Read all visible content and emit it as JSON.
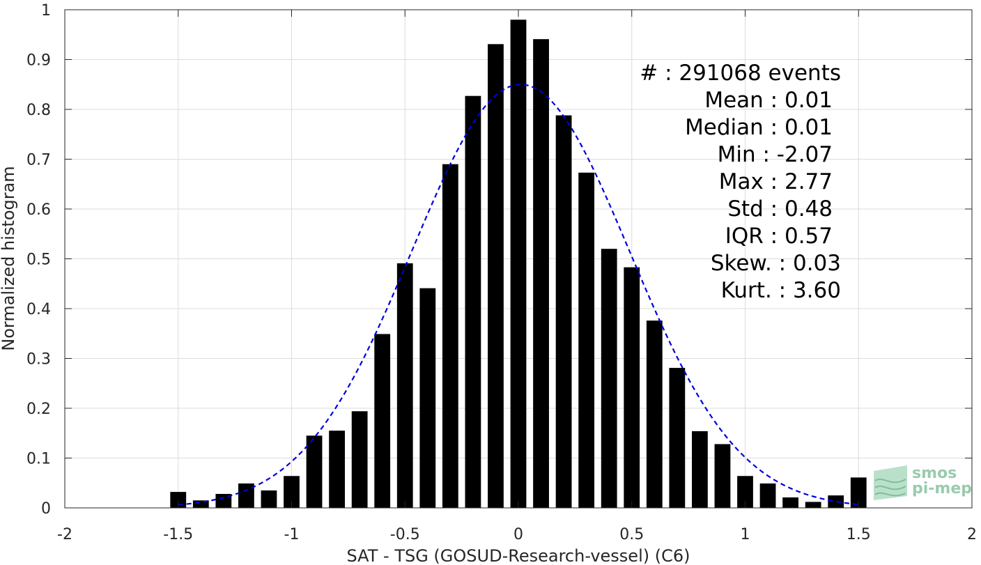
{
  "chart_data": {
    "type": "bar",
    "xlabel": "SAT - TSG (GOSUD-Research-vessel) (C6)",
    "ylabel": "Normalized histogram",
    "xlim": [
      -2,
      2
    ],
    "ylim": [
      0,
      1
    ],
    "xticks": [
      -2,
      -1.5,
      -1,
      -0.5,
      0,
      0.5,
      1,
      1.5,
      2
    ],
    "xtick_labels": [
      "-2",
      "-1.5",
      "-1",
      "-0.5",
      "0",
      "0.5",
      "1",
      "1.5",
      "2"
    ],
    "yticks": [
      0,
      0.1,
      0.2,
      0.3,
      0.4,
      0.5,
      0.6,
      0.7,
      0.8,
      0.9,
      1
    ],
    "ytick_labels": [
      "0",
      "0.1",
      "0.2",
      "0.3",
      "0.4",
      "0.5",
      "0.6",
      "0.7",
      "0.8",
      "0.9",
      "1"
    ],
    "grid": true,
    "bar_color": "#000000",
    "bar_width": 0.07,
    "x": [
      -1.5,
      -1.4,
      -1.3,
      -1.2,
      -1.1,
      -1.0,
      -0.9,
      -0.8,
      -0.7,
      -0.6,
      -0.5,
      -0.4,
      -0.3,
      -0.2,
      -0.1,
      0.0,
      0.1,
      0.2,
      0.3,
      0.4,
      0.5,
      0.6,
      0.7,
      0.8,
      0.9,
      1.0,
      1.1,
      1.2,
      1.3,
      1.4,
      1.5
    ],
    "values": [
      0.032,
      0.015,
      0.028,
      0.049,
      0.035,
      0.064,
      0.145,
      0.155,
      0.194,
      0.349,
      0.491,
      0.441,
      0.69,
      0.827,
      0.931,
      0.98,
      0.941,
      0.788,
      0.673,
      0.52,
      0.483,
      0.376,
      0.281,
      0.154,
      0.128,
      0.064,
      0.049,
      0.021,
      0.012,
      0.025,
      0.061
    ],
    "fit": {
      "type": "gaussian",
      "mean": 0.01,
      "std": 0.48,
      "peak": 0.85,
      "x_range": [
        -1.5,
        1.5
      ],
      "color": "#0000dd",
      "style": "dashed"
    },
    "stats": [
      {
        "label": "#  : 291068 events"
      },
      {
        "label": "Mean : 0.01"
      },
      {
        "label": "Median : 0.01"
      },
      {
        "label": "Min : -2.07"
      },
      {
        "label": "Max : 2.77"
      },
      {
        "label": "Std : 0.48"
      },
      {
        "label": "IQR : 0.57"
      },
      {
        "label": "Skew. : 0.03"
      },
      {
        "label": "Kurt. : 3.60"
      }
    ]
  },
  "logo": {
    "line1": "smos",
    "line2": "pi-mep",
    "color": "#7fbf9a"
  }
}
